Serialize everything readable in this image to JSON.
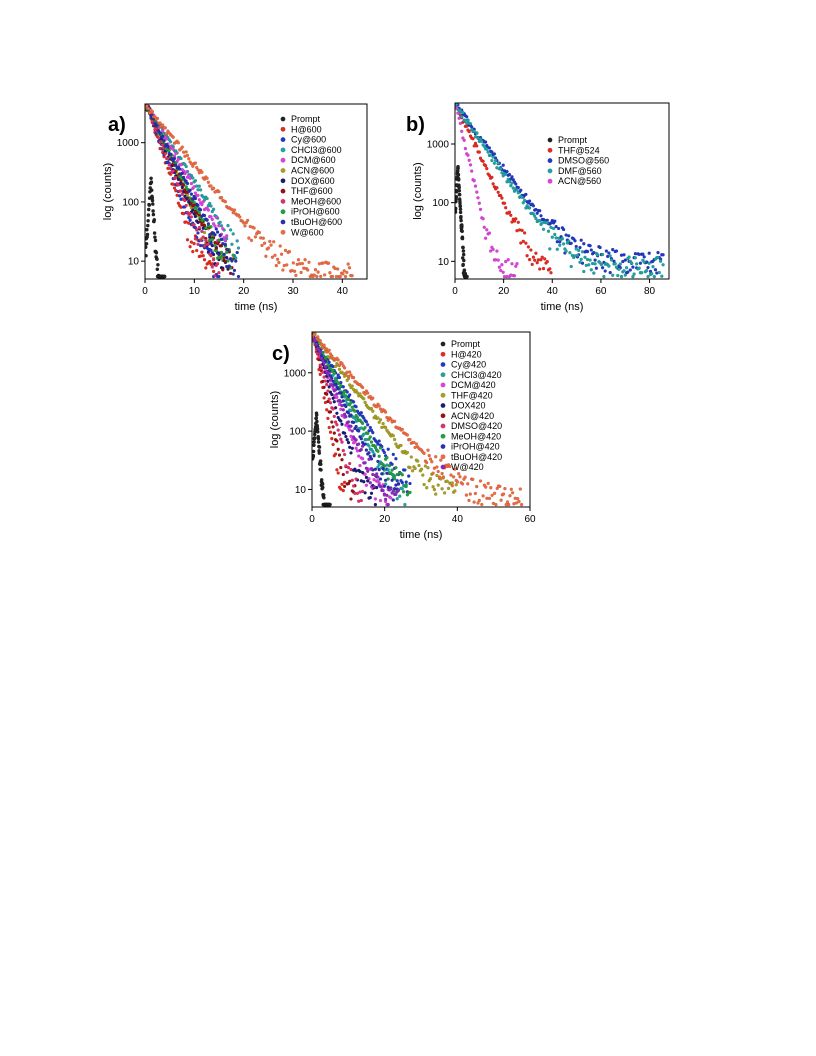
{
  "chart_data": [
    {
      "panel": "a)",
      "type": "scatter",
      "xlabel": "time (ns)",
      "ylabel": "log (counts)",
      "xlim": [
        0,
        45
      ],
      "ylim": [
        5,
        4500
      ],
      "yscale": "log",
      "xticks": [
        0,
        10,
        20,
        30,
        40
      ],
      "yticks": [
        10,
        100,
        1000
      ],
      "legend_position": "top-right",
      "series": [
        {
          "name": "Prompt",
          "color": "#222222",
          "peak": 250,
          "tau": 0.35,
          "tail": 0,
          "end": 4
        },
        {
          "name": "H@600",
          "color": "#e8281e",
          "peak": 4000,
          "tau": 1.7,
          "tail": 6,
          "end": 14
        },
        {
          "name": "Cy@600",
          "color": "#2238c8",
          "peak": 4000,
          "tau": 1.9,
          "tail": 6,
          "end": 15
        },
        {
          "name": "CHCl3@600",
          "color": "#1fa3a3",
          "peak": 4000,
          "tau": 3.3,
          "tail": 0,
          "end": 19
        },
        {
          "name": "DCM@600",
          "color": "#e040e0",
          "peak": 4000,
          "tau": 3.0,
          "tail": 0,
          "end": 17
        },
        {
          "name": "ACN@600",
          "color": "#a8a020",
          "peak": 4000,
          "tau": 2.3,
          "tail": 6,
          "end": 16
        },
        {
          "name": "DOX@600",
          "color": "#1a1a7a",
          "peak": 4000,
          "tau": 2.2,
          "tail": 6,
          "end": 17
        },
        {
          "name": "THF@600",
          "color": "#9a1010",
          "peak": 4000,
          "tau": 2.4,
          "tail": 6,
          "end": 18
        },
        {
          "name": "MeOH@600",
          "color": "#e0306a",
          "peak": 4000,
          "tau": 2.0,
          "tail": 6,
          "end": 15
        },
        {
          "name": "iPrOH@600",
          "color": "#22a040",
          "peak": 4000,
          "tau": 2.5,
          "tail": 6,
          "end": 18
        },
        {
          "name": "tBuOH@600",
          "color": "#2630b0",
          "peak": 4000,
          "tau": 2.6,
          "tail": 6,
          "end": 19
        },
        {
          "name": "W@600",
          "color": "#f06a40",
          "peak": 4000,
          "tau": 4.2,
          "tail": 6,
          "end": 42
        }
      ]
    },
    {
      "panel": "b)",
      "type": "scatter",
      "xlabel": "time (ns)",
      "ylabel": "log (counts)",
      "xlim": [
        0,
        88
      ],
      "ylim": [
        5,
        5000
      ],
      "yscale": "log",
      "xticks": [
        0,
        20,
        40,
        60,
        80
      ],
      "yticks": [
        10,
        100,
        1000
      ],
      "legend_position": "top-right",
      "series": [
        {
          "name": "Prompt",
          "color": "#222222",
          "peak": 400,
          "tau": 0.6,
          "tail": 0,
          "end": 5
        },
        {
          "name": "THF@524",
          "color": "#e8281e",
          "peak": 4500,
          "tau": 5.0,
          "tail": 6,
          "end": 40
        },
        {
          "name": "DMSO@560",
          "color": "#2238c8",
          "peak": 4500,
          "tau": 7.8,
          "tail": 10,
          "end": 86
        },
        {
          "name": "DMF@560",
          "color": "#1fa3a3",
          "peak": 4500,
          "tau": 7.2,
          "tail": 8,
          "end": 86
        },
        {
          "name": "ACN@560",
          "color": "#e040e0",
          "peak": 4500,
          "tau": 2.4,
          "tail": 7,
          "end": 26
        }
      ]
    },
    {
      "panel": "c)",
      "type": "scatter",
      "xlabel": "time (ns)",
      "ylabel": "log (counts)",
      "xlim": [
        0,
        60
      ],
      "ylim": [
        5,
        5000
      ],
      "yscale": "log",
      "xticks": [
        0,
        20,
        40,
        60
      ],
      "yticks": [
        10,
        100,
        1000
      ],
      "legend_position": "top-right",
      "series": [
        {
          "name": "Prompt",
          "color": "#222222",
          "peak": 200,
          "tau": 0.5,
          "tail": 0,
          "end": 5
        },
        {
          "name": "H@420",
          "color": "#e8281e",
          "peak": 4000,
          "tau": 1.2,
          "tail": 6,
          "end": 9
        },
        {
          "name": "Cy@420",
          "color": "#2238c8",
          "peak": 4000,
          "tau": 4.2,
          "tail": 6,
          "end": 27
        },
        {
          "name": "CHCl3@420",
          "color": "#1fa3a3",
          "peak": 4000,
          "tau": 3.5,
          "tail": 6,
          "end": 26
        },
        {
          "name": "DCM@420",
          "color": "#e040e0",
          "peak": 4000,
          "tau": 2.6,
          "tail": 6,
          "end": 22
        },
        {
          "name": "THF@420",
          "color": "#a8a020",
          "peak": 4500,
          "tau": 5.2,
          "tail": 7,
          "end": 40
        },
        {
          "name": "DOX420",
          "color": "#1a1a7a",
          "peak": 4000,
          "tau": 2.2,
          "tail": 6,
          "end": 18
        },
        {
          "name": "ACN@420",
          "color": "#9a1010",
          "peak": 4000,
          "tau": 1.5,
          "tail": 6,
          "end": 12
        },
        {
          "name": "DMSO@420",
          "color": "#e0306a",
          "peak": 4000,
          "tau": 1.8,
          "tail": 6,
          "end": 14
        },
        {
          "name": "MeOH@420",
          "color": "#22a040",
          "peak": 4000,
          "tau": 3.8,
          "tail": 6,
          "end": 27
        },
        {
          "name": "iPrOH@420",
          "color": "#2630b0",
          "peak": 4000,
          "tau": 3.2,
          "tail": 6,
          "end": 24
        },
        {
          "name": "tBuOH@420",
          "color": "#f06a40",
          "peak": 4500,
          "tau": 6.2,
          "tail": 7,
          "end": 58
        },
        {
          "name": "W@420",
          "color": "#8a2ac0",
          "peak": 4000,
          "tau": 2.8,
          "tail": 6,
          "end": 24
        }
      ]
    }
  ]
}
